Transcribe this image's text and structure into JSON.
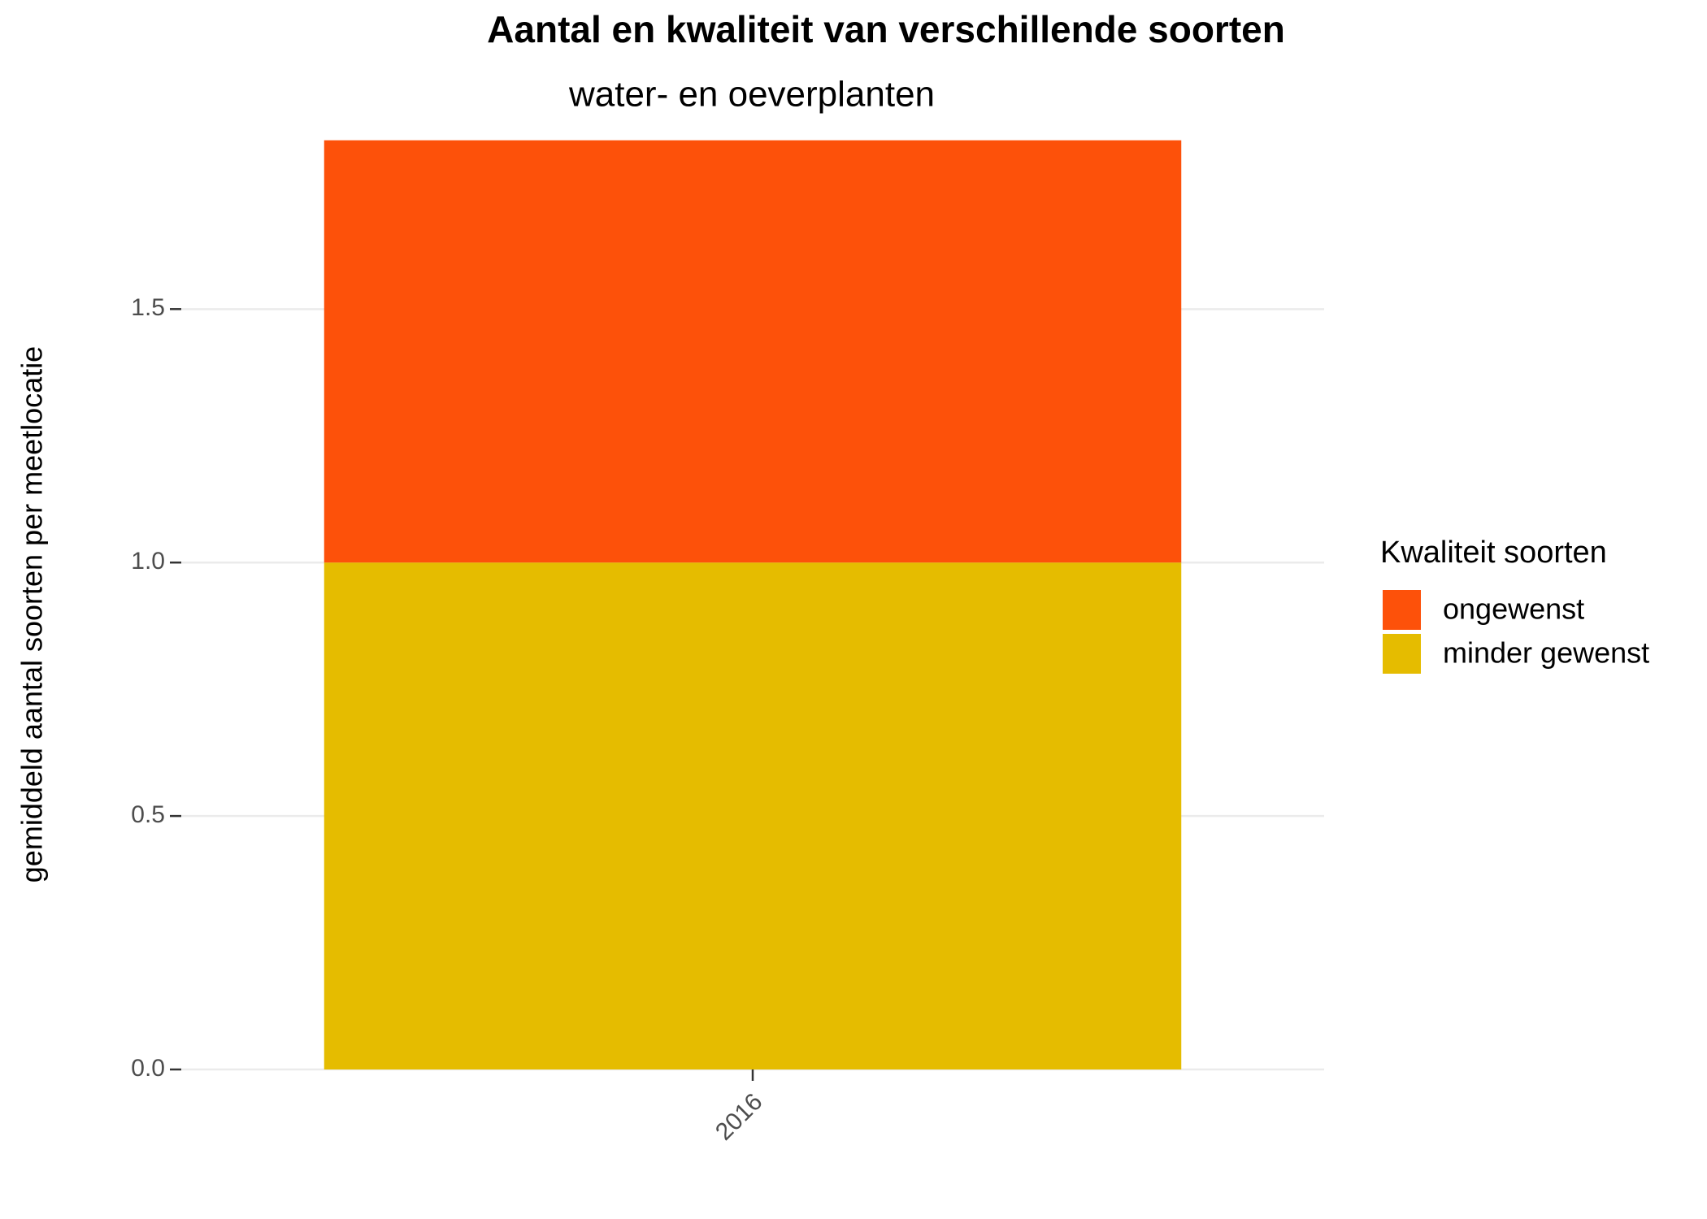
{
  "chart_data": {
    "type": "stacked_bar",
    "title": "Aantal en kwaliteit van verschillende soorten",
    "subtitle": "water- en oeverplanten",
    "y_label": "gemiddeld aantal soorten per meetlocatie",
    "categories": [
      "2016"
    ],
    "series": [
      {
        "name": "minder gewenst",
        "color": "#e5bc00",
        "values": [
          1.0
        ]
      },
      {
        "name": "ongewenst",
        "color": "#fd510a",
        "values": [
          0.833
        ]
      }
    ],
    "legend_title": "Kwaliteit soorten",
    "legend_position": "right",
    "ylim": [
      0,
      1.85
    ],
    "yticks": [
      {
        "value": 0,
        "label": "0.0"
      },
      {
        "value": 0.5,
        "label": "0.5"
      },
      {
        "value": 1,
        "label": "1.0"
      },
      {
        "value": 1.5,
        "label": "1.5"
      }
    ],
    "grid": true
  }
}
